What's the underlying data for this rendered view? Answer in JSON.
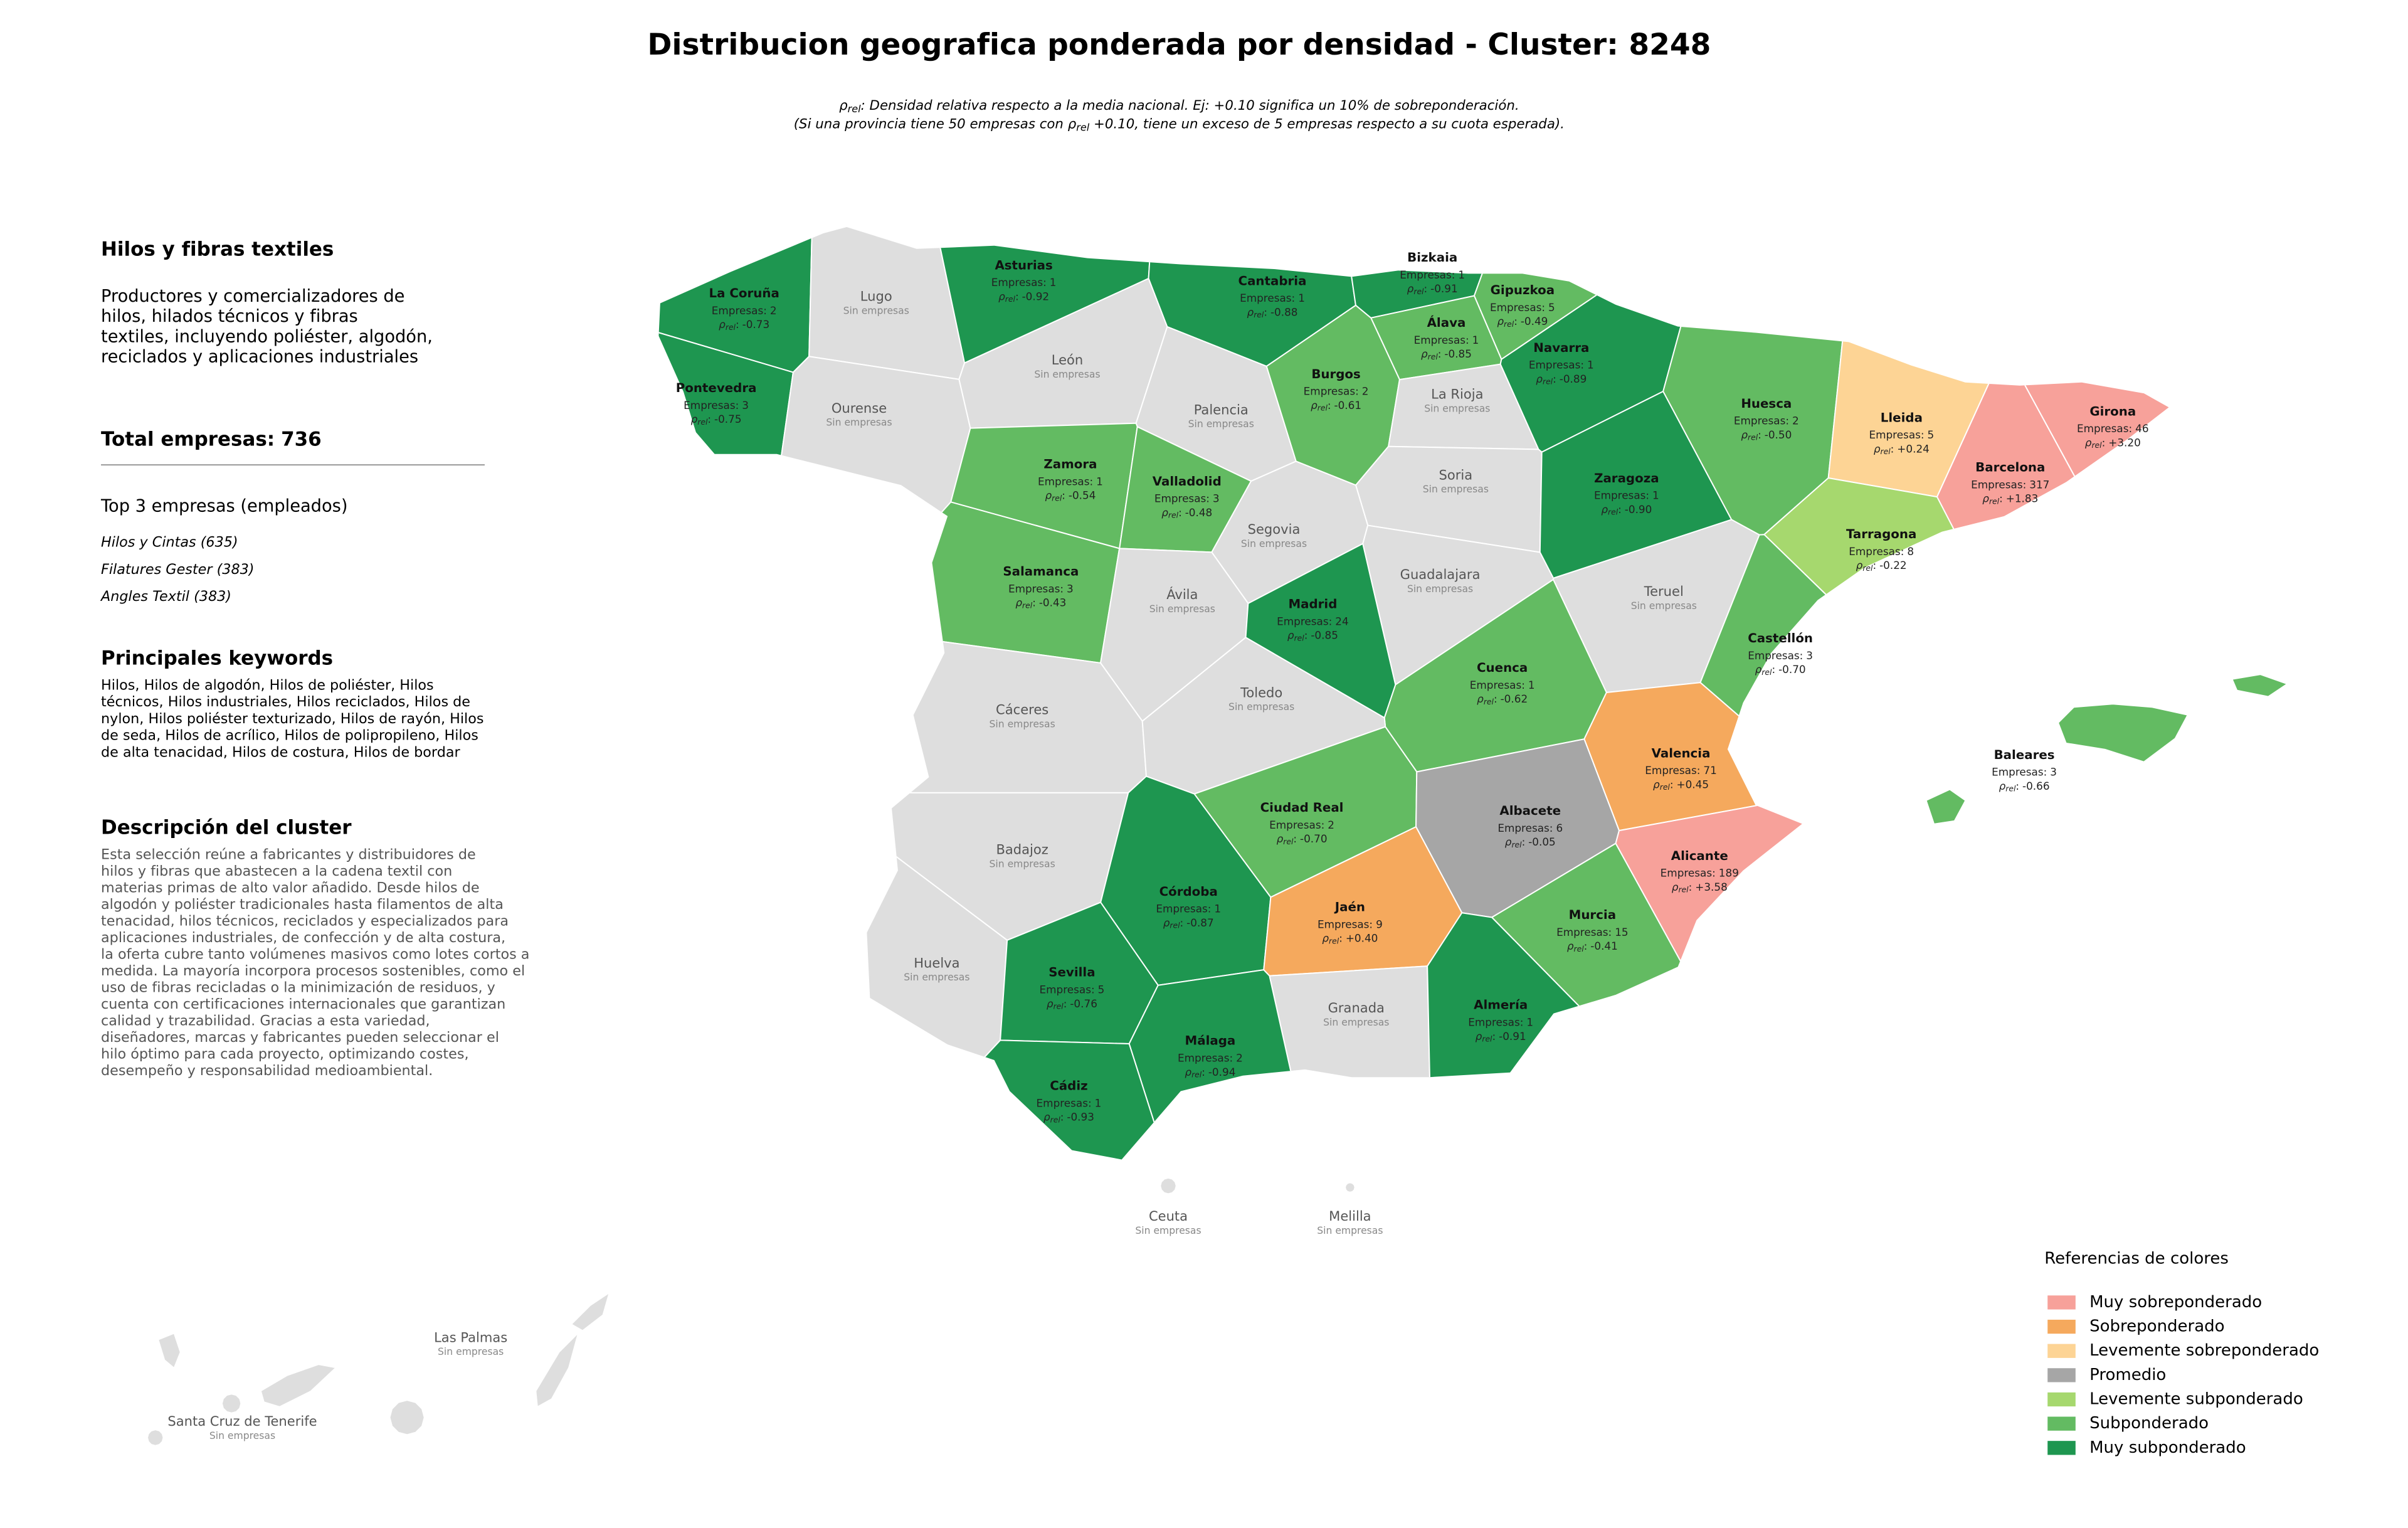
{
  "title": "Distribucion geografica ponderada por densidad - Cluster: 8248",
  "subtitle": [
    [
      "ρ",
      "rel",
      ": Densidad relativa respecto a la media nacional. Ej: +0.10 significa un 10% de sobreponderación."
    ],
    [
      "(Si una provincia tiene 50 empresas con ρ",
      "rel",
      " +0.10, tiene un exceso de 5 empresas respecto a su cuota esperada)."
    ]
  ],
  "sidebar": {
    "heading": "Hilos y fibras textiles",
    "intro": [
      "Productores y comercializadores de",
      "hilos, hilados técnicos y fibras",
      "textiles, incluyendo poliéster, algodón,",
      "reciclados y aplicaciones industriales"
    ],
    "total_label": "Total empresas:",
    "total": 736,
    "top_heading": "Top 3 empresas (empleados)",
    "top": [
      "Hilos y Cintas (635)",
      "Filatures Gester (383)",
      "Angles Textil (383)"
    ],
    "keywords_heading": "Principales keywords",
    "keywords": [
      "Hilos, Hilos de algodón, Hilos de poliéster, Hilos",
      "técnicos, Hilos industriales, Hilos reciclados, Hilos de",
      "nylon, Hilos poliéster texturizado, Hilos de rayón, Hilos",
      "de seda, Hilos de acrílico, Hilos de polipropileno, Hilos",
      "de alta tenacidad, Hilos de costura, Hilos de bordar"
    ],
    "description_heading": "Descripción del cluster",
    "description": [
      "Esta selección reúne a fabricantes y distribuidores de",
      "hilos y fibras que abastecen a la cadena textil con",
      "materias primas de alto valor añadido. Desde hilos de",
      "algodón y poliéster tradicionales hasta filamentos de alta",
      "tenacidad, hilos técnicos, reciclados y especializados para",
      "aplicaciones industriales, de confección y de alta costura,",
      "la oferta cubre tanto volúmenes masivos como lotes cortos a",
      "medida. La mayoría incorpora procesos sostenibles, como el",
      "uso de fibras recicladas o la minimización de residuos, y",
      "cuenta con certificaciones internacionales que garantizan",
      "calidad y trazabilidad. Gracias a esta variedad,",
      "diseñadores, marcas y fabricantes pueden seleccionar el",
      "hilo óptimo para cada proyecto, optimizando costes,",
      "desempeño y responsabilidad medioambiental."
    ]
  },
  "labels": {
    "empresas": "Empresas:",
    "rho": "ρ",
    "rho_sub": "rel",
    "rho_sep": ":",
    "no_data": "Sin empresas"
  },
  "no_data_color": "#dedede",
  "legend": {
    "title": "Referencias de colores",
    "items": [
      {
        "name": "Muy sobreponderado",
        "color": "#f7a19a"
      },
      {
        "name": "Sobreponderado",
        "color": "#f5a95d"
      },
      {
        "name": "Levemente sobreponderado",
        "color": "#fdd495"
      },
      {
        "name": "Promedio",
        "color": "#a6a6a6"
      },
      {
        "name": "Levemente subponderado",
        "color": "#a6d86e"
      },
      {
        "name": "Subponderado",
        "color": "#63bb62"
      },
      {
        "name": "Muy subponderado",
        "color": "#1e9650"
      }
    ]
  },
  "provinces": [
    {
      "name": "La Coruña",
      "empresas": 2,
      "rho": "-0.73",
      "level": 6
    },
    {
      "name": "Lugo",
      "empresas": null,
      "rho": null,
      "level": null
    },
    {
      "name": "Asturias",
      "empresas": 1,
      "rho": "-0.92",
      "level": 6
    },
    {
      "name": "Cantabria",
      "empresas": 1,
      "rho": "-0.88",
      "level": 6
    },
    {
      "name": "Bizkaia",
      "empresas": 1,
      "rho": "-0.91",
      "level": 6
    },
    {
      "name": "Gipuzkoa",
      "empresas": 5,
      "rho": "-0.49",
      "level": 5
    },
    {
      "name": "Álava",
      "empresas": 1,
      "rho": "-0.85",
      "level": 5
    },
    {
      "name": "Navarra",
      "empresas": 1,
      "rho": "-0.89",
      "level": 6
    },
    {
      "name": "Pontevedra",
      "empresas": 3,
      "rho": "-0.75",
      "level": 6
    },
    {
      "name": "Ourense",
      "empresas": null,
      "rho": null,
      "level": null
    },
    {
      "name": "León",
      "empresas": null,
      "rho": null,
      "level": null
    },
    {
      "name": "Palencia",
      "empresas": null,
      "rho": null,
      "level": null
    },
    {
      "name": "Burgos",
      "empresas": 2,
      "rho": "-0.61",
      "level": 5
    },
    {
      "name": "La Rioja",
      "empresas": null,
      "rho": null,
      "level": null
    },
    {
      "name": "Huesca",
      "empresas": 2,
      "rho": "-0.50",
      "level": 5
    },
    {
      "name": "Lleida",
      "empresas": 5,
      "rho": "+0.24",
      "level": 2
    },
    {
      "name": "Girona",
      "empresas": 46,
      "rho": "+3.20",
      "level": 0
    },
    {
      "name": "Barcelona",
      "empresas": 317,
      "rho": "+1.83",
      "level": 0
    },
    {
      "name": "Zamora",
      "empresas": 1,
      "rho": "-0.54",
      "level": 5
    },
    {
      "name": "Valladolid",
      "empresas": 3,
      "rho": "-0.48",
      "level": 5
    },
    {
      "name": "Soria",
      "empresas": null,
      "rho": null,
      "level": null
    },
    {
      "name": "Zaragoza",
      "empresas": 1,
      "rho": "-0.90",
      "level": 6
    },
    {
      "name": "Tarragona",
      "empresas": 8,
      "rho": "-0.22",
      "level": 4
    },
    {
      "name": "Segovia",
      "empresas": null,
      "rho": null,
      "level": null
    },
    {
      "name": "Salamanca",
      "empresas": 3,
      "rho": "-0.43",
      "level": 5
    },
    {
      "name": "Ávila",
      "empresas": null,
      "rho": null,
      "level": null
    },
    {
      "name": "Madrid",
      "empresas": 24,
      "rho": "-0.85",
      "level": 6
    },
    {
      "name": "Guadalajara",
      "empresas": null,
      "rho": null,
      "level": null
    },
    {
      "name": "Teruel",
      "empresas": null,
      "rho": null,
      "level": null
    },
    {
      "name": "Castellón",
      "empresas": 3,
      "rho": "-0.70",
      "level": 5
    },
    {
      "name": "Cuenca",
      "empresas": 1,
      "rho": "-0.62",
      "level": 5
    },
    {
      "name": "Cáceres",
      "empresas": null,
      "rho": null,
      "level": null
    },
    {
      "name": "Toledo",
      "empresas": null,
      "rho": null,
      "level": null
    },
    {
      "name": "Valencia",
      "empresas": 71,
      "rho": "+0.45",
      "level": 1
    },
    {
      "name": "Baleares",
      "empresas": 3,
      "rho": "-0.66",
      "level": 5
    },
    {
      "name": "Ciudad Real",
      "empresas": 2,
      "rho": "-0.70",
      "level": 5
    },
    {
      "name": "Albacete",
      "empresas": 6,
      "rho": "-0.05",
      "level": 3
    },
    {
      "name": "Badajoz",
      "empresas": null,
      "rho": null,
      "level": null
    },
    {
      "name": "Alicante",
      "empresas": 189,
      "rho": "+3.58",
      "level": 0
    },
    {
      "name": "Córdoba",
      "empresas": 1,
      "rho": "-0.87",
      "level": 6
    },
    {
      "name": "Jaén",
      "empresas": 9,
      "rho": "+0.40",
      "level": 1
    },
    {
      "name": "Murcia",
      "empresas": 15,
      "rho": "-0.41",
      "level": 5
    },
    {
      "name": "Huelva",
      "empresas": null,
      "rho": null,
      "level": null
    },
    {
      "name": "Sevilla",
      "empresas": 5,
      "rho": "-0.76",
      "level": 6
    },
    {
      "name": "Granada",
      "empresas": null,
      "rho": null,
      "level": null
    },
    {
      "name": "Almería",
      "empresas": 1,
      "rho": "-0.91",
      "level": 6
    },
    {
      "name": "Málaga",
      "empresas": 2,
      "rho": "-0.94",
      "level": 6
    },
    {
      "name": "Cádiz",
      "empresas": 1,
      "rho": "-0.93",
      "level": 6
    },
    {
      "name": "Ceuta",
      "empresas": null,
      "rho": null,
      "level": null
    },
    {
      "name": "Melilla",
      "empresas": null,
      "rho": null,
      "level": null
    },
    {
      "name": "Las Palmas",
      "empresas": null,
      "rho": null,
      "level": null
    },
    {
      "name": "Santa Cruz de Tenerife",
      "empresas": null,
      "rho": null,
      "level": null
    }
  ]
}
